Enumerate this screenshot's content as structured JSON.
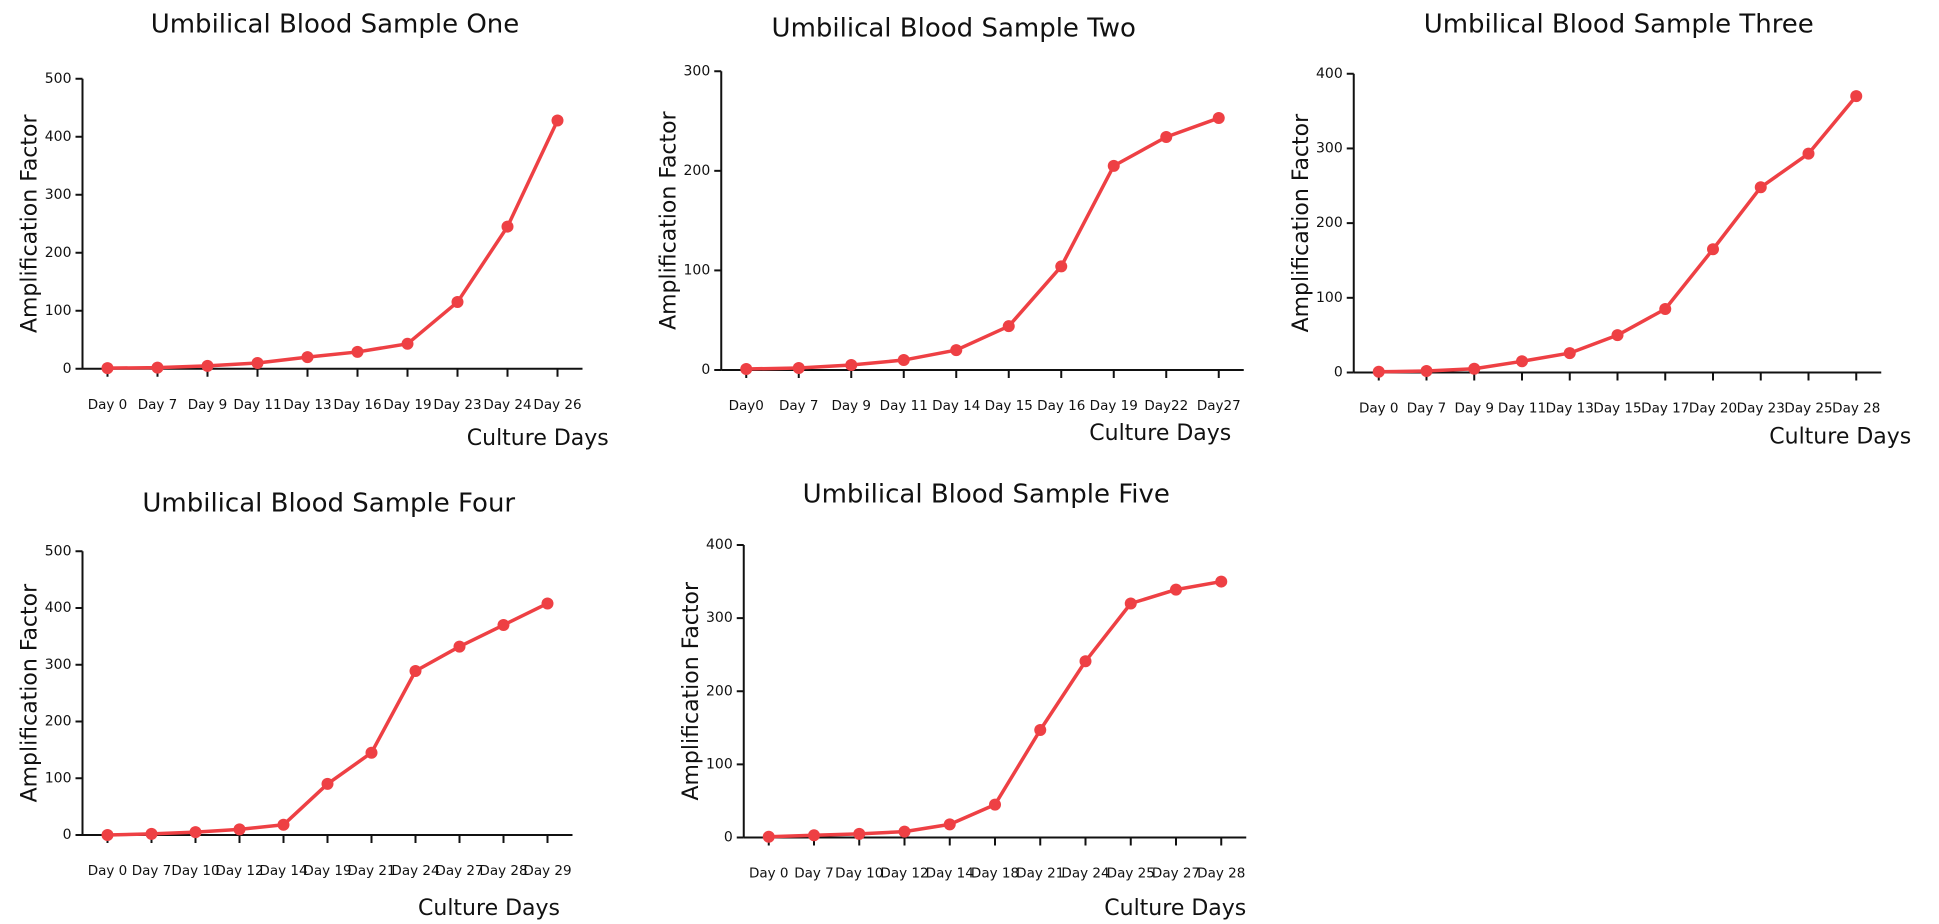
{
  "chart_data": [
    {
      "type": "line",
      "title": "Umbilical Blood Sample One",
      "x_label": "Culture Days",
      "y_label": "Amplification Factor",
      "color": "#ee4044",
      "categories": [
        "Day 0",
        "Day 7",
        "Day 9",
        "Day 11",
        "Day 13",
        "Day 16",
        "Day 19",
        "Day 23",
        "Day 24",
        "Day 26"
      ],
      "values": [
        1,
        2,
        5,
        10,
        20,
        29,
        43,
        115,
        245,
        428
      ],
      "ylim": [
        0,
        500
      ],
      "yticks": [
        0,
        100,
        200,
        300,
        400,
        500
      ]
    },
    {
      "type": "line",
      "title": "Umbilical Blood Sample Two",
      "x_label": "Culture Days",
      "y_label": "Amplification Factor",
      "color": "#ee4044",
      "categories": [
        "Day0",
        "Day 7",
        "Day 9",
        "Day 11",
        "Day 14",
        "Day 15",
        "Day 16",
        "Day 19",
        "Day22",
        "Day27"
      ],
      "values": [
        1,
        2,
        5,
        10,
        20,
        44,
        104,
        205,
        234,
        253
      ],
      "ylim": [
        0,
        300
      ],
      "yticks": [
        0,
        100,
        200,
        300
      ]
    },
    {
      "type": "line",
      "title": "Umbilical Blood Sample Three",
      "x_label": "Culture Days",
      "y_label": "Amplification Factor",
      "color": "#ee4044",
      "categories": [
        "Day 0",
        "Day 7",
        "Day 9",
        "Day 11",
        "Day 13",
        "Day 15",
        "Day 17",
        "Day 20",
        "Day 23",
        "Day 25",
        "Day 28"
      ],
      "values": [
        1,
        2,
        5,
        15,
        26,
        50,
        85,
        165,
        248,
        293,
        370
      ],
      "ylim": [
        0,
        400
      ],
      "yticks": [
        0,
        100,
        200,
        300,
        400
      ]
    },
    {
      "type": "line",
      "title": "Umbilical Blood Sample Four",
      "x_label": "Culture Days",
      "y_label": "Amplification Factor",
      "color": "#ee4044",
      "categories": [
        "Day 0",
        "Day 7",
        "Day 10",
        "Day 12",
        "Day 14",
        "Day 19",
        "Day 21",
        "Day 24",
        "Day 27",
        "Day 28",
        "Day 29"
      ],
      "values": [
        0,
        2,
        5,
        10,
        18,
        90,
        145,
        289,
        332,
        370,
        408
      ],
      "ylim": [
        0,
        500
      ],
      "yticks": [
        0,
        100,
        200,
        300,
        400,
        500
      ]
    },
    {
      "type": "line",
      "title": "Umbilical Blood Sample Five",
      "x_label": "Culture Days",
      "y_label": "Amplification Factor",
      "color": "#ee4044",
      "categories": [
        "Day 0",
        "Day 7",
        "Day 10",
        "Day 12",
        "Day 14",
        "Day 18",
        "Day 21",
        "Day 24",
        "Day 25",
        "Day 27",
        "Day 28"
      ],
      "values": [
        1,
        3,
        5,
        8,
        18,
        45,
        147,
        241,
        320,
        339,
        350
      ],
      "ylim": [
        0,
        400
      ],
      "yticks": [
        0,
        100,
        200,
        300,
        400
      ]
    }
  ]
}
